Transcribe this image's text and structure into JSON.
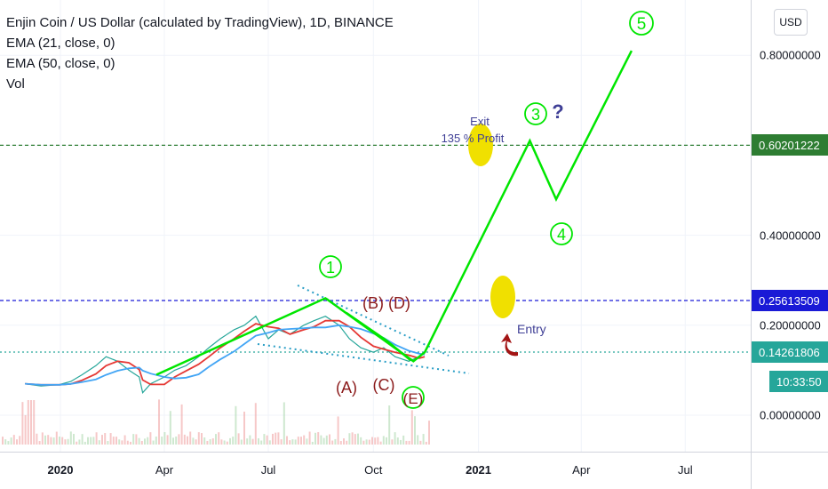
{
  "legend": {
    "title": "Enjin Coin / US Dollar (calculated by TradingView), 1D, BINANCE",
    "ema21": "EMA (21, close, 0)",
    "ema50": "EMA (50, close, 0)",
    "vol": "Vol"
  },
  "currency_button": "USD",
  "colors": {
    "green_line": "#00e600",
    "badge_green": "#2e7d32",
    "badge_blue": "#1a1ad6",
    "badge_teal": "#26a69a",
    "price_red": "#e53935",
    "ema_blue": "#42a5f5",
    "annotation_text": "#3f3f96",
    "wave_red": "#8b1a1a",
    "yellow": "#f0e000",
    "arrow_red": "#a31515"
  },
  "chart_data": {
    "type": "line",
    "title": "Enjin Coin / US Dollar (calculated by TradingView), 1D, BINANCE",
    "xlabel": "",
    "ylabel": "",
    "x_ticks": [
      "2020",
      "Apr",
      "Jul",
      "Oct",
      "2021",
      "Apr",
      "Jul"
    ],
    "y_ticks": [
      "0.80000000",
      "0.40000000",
      "0.20000000",
      "0.00000000"
    ],
    "ylim": [
      -0.05,
      0.95
    ],
    "price_levels": [
      {
        "value": "0.60201222",
        "style": "dashed",
        "color": "#2e7d32"
      },
      {
        "value": "0.25613509",
        "style": "dashed",
        "color": "#1a1ad6"
      },
      {
        "value": "0.14261806",
        "style": "dotted",
        "color": "#26a69a"
      }
    ],
    "countdown": "10:33:50",
    "series": [
      {
        "name": "EMA (21, close, 0)",
        "color": "#e53935"
      },
      {
        "name": "EMA (50, close, 0)",
        "color": "#42a5f5"
      }
    ],
    "price": {
      "x": [
        "2019-12-01",
        "2019-12-15",
        "2019-12-31",
        "2020-01-10",
        "2020-01-20",
        "2020-02-01",
        "2020-02-10",
        "2020-02-20",
        "2020-03-01",
        "2020-03-10",
        "2020-03-13",
        "2020-03-20",
        "2020-04-01",
        "2020-04-10",
        "2020-04-20",
        "2020-05-01",
        "2020-05-10",
        "2020-05-20",
        "2020-06-01",
        "2020-06-10",
        "2020-06-20",
        "2020-07-01",
        "2020-07-10",
        "2020-07-20",
        "2020-08-01",
        "2020-08-10",
        "2020-08-20",
        "2020-09-01",
        "2020-09-10",
        "2020-09-20",
        "2020-10-01",
        "2020-10-10",
        "2020-10-20",
        "2020-11-01",
        "2020-11-10",
        "2020-11-15"
      ],
      "y": [
        0.07,
        0.065,
        0.068,
        0.075,
        0.09,
        0.11,
        0.13,
        0.12,
        0.1,
        0.085,
        0.05,
        0.07,
        0.085,
        0.1,
        0.11,
        0.13,
        0.15,
        0.17,
        0.19,
        0.2,
        0.22,
        0.17,
        0.19,
        0.18,
        0.2,
        0.21,
        0.22,
        0.2,
        0.17,
        0.15,
        0.14,
        0.15,
        0.13,
        0.12,
        0.13,
        0.14
      ]
    },
    "wave_projection": {
      "x": [
        "2020-03-25",
        "2020-08-20",
        "2020-11-05",
        "2020-11-15",
        "2021-02-15",
        "2021-03-10",
        "2021-05-15"
      ],
      "y": [
        0.09,
        0.26,
        0.12,
        0.14,
        0.61,
        0.48,
        0.81
      ]
    },
    "annotations": {
      "wave1": "1",
      "wave3": "3",
      "wave4": "4",
      "wave5": "5",
      "question": "?",
      "wave_B": "(B)",
      "wave_D": "(D)",
      "wave_A": "(A)",
      "wave_C": "(C)",
      "wave_E": "(E)",
      "exit_line1": "Exit",
      "exit_line2": "135 % Profit",
      "entry": "Entry"
    }
  }
}
